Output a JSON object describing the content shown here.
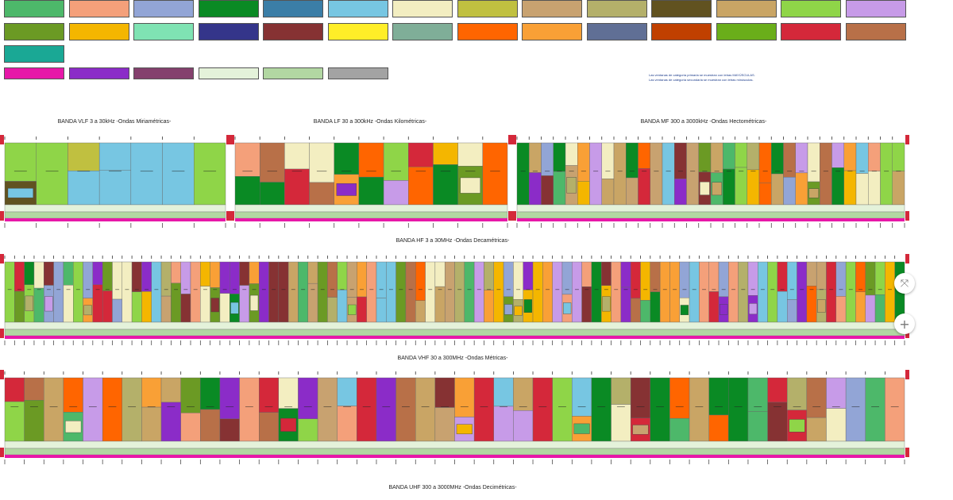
{
  "legend": {
    "swatches": [
      "#4db86a",
      "#f4a07a",
      "#92a5d6",
      "#0a8a24",
      "#3b7ea7",
      "#77c6e2",
      "#f3eec1",
      "#c0c040",
      "#c8a270",
      "#b4b06a",
      "#615220",
      "#c9a565",
      "#8fd548",
      "#c79be8",
      "#6b9a24",
      "#f4b600",
      "#7fe3b3",
      "#34358a",
      "#863233",
      "#ffee28",
      "#7fae98",
      "#ff6500",
      "#f9a036",
      "#606f95",
      "#c04000",
      "#6aae1a",
      "#d4283a",
      "#b87048",
      "#1aa895",
      "#e718a8",
      "#8b2cc8",
      "#84406d",
      "#e4f2da",
      "#b2d7a2",
      "#a3a3a3"
    ],
    "note": [
      "Las ventanas de categoría primaria se muestran con letras MAYÚSCULAS.",
      "Las ventanas de categoría secundaria se muestran con letras minúsculas."
    ]
  },
  "bands": {
    "vlf": {
      "title": "BANDA VLF 3 a 30kHz -Ondas Miriamétricas-"
    },
    "lf": {
      "title": "BANDA LF 30 a 300kHz -Ondas Kilométricas-"
    },
    "mf": {
      "title": "BANDA MF 300 a 3000kHz -Ondas Hectométricas-"
    },
    "hf": {
      "title": "BANDA HF 3 a 30MHz -Ondas Decamétricas-"
    },
    "vhf": {
      "title": "BANDA VHF 30 a 300MHz -Ondas Métricas-"
    },
    "uhf": {
      "title": "BANDA UHF 300 a 3000MHz -Ondas Decimétricas-"
    }
  },
  "controls": {
    "fit_icon": "fit-to-screen-icon",
    "zoom_icon": "zoom-in-icon",
    "fit_symbol": "⤧",
    "zoom_symbol": "+"
  }
}
